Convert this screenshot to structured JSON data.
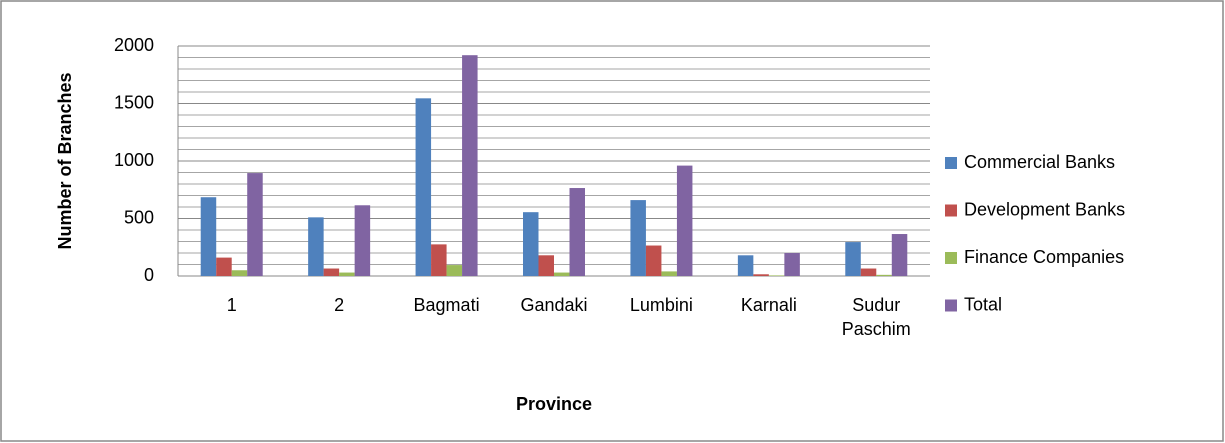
{
  "chart_data": {
    "type": "bar",
    "x_label": "Province",
    "y_label": "Number of Branches",
    "categories": [
      "1",
      "2",
      "Bagmati",
      "Gandaki",
      "Lumbini",
      "Karnali",
      "Sudur Paschim"
    ],
    "series": [
      {
        "name": "Commercial Banks",
        "color": "#4f81bd",
        "values": [
          685,
          510,
          1545,
          555,
          660,
          180,
          295
        ]
      },
      {
        "name": "Development Banks",
        "color": "#c0504d",
        "values": [
          160,
          65,
          275,
          180,
          265,
          15,
          65
        ]
      },
      {
        "name": "Finance Companies",
        "color": "#9bbb59",
        "values": [
          50,
          30,
          95,
          30,
          40,
          5,
          10
        ]
      },
      {
        "name": "Total",
        "color": "#8064a2",
        "values": [
          895,
          615,
          1920,
          765,
          960,
          200,
          365
        ]
      }
    ],
    "ylim": [
      0,
      2000
    ],
    "yticks": [
      0,
      500,
      1000,
      1500,
      2000
    ],
    "minor_yticks": [
      100,
      200,
      300,
      400,
      600,
      700,
      800,
      900,
      1100,
      1200,
      1300,
      1400,
      1600,
      1700,
      1800,
      1900
    ],
    "grid": true,
    "legend": "right"
  }
}
